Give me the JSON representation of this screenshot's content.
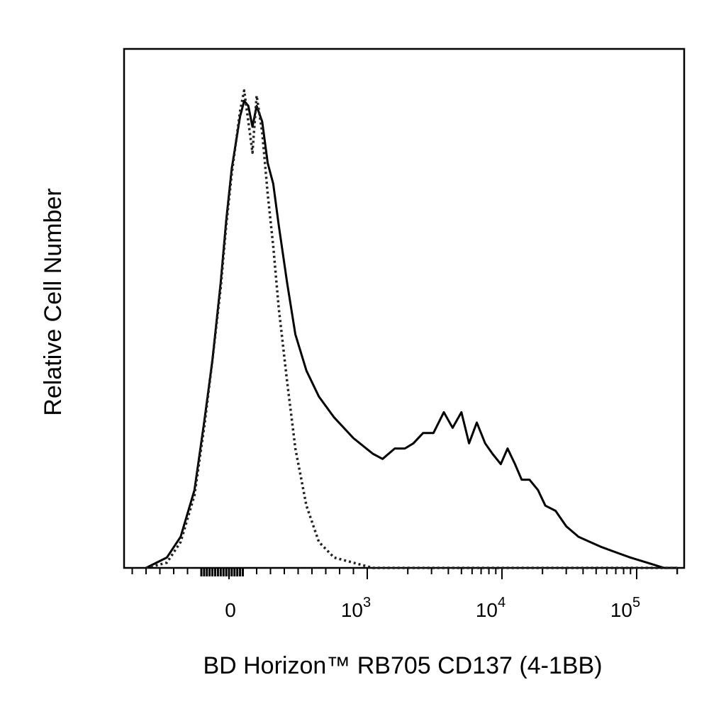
{
  "chart_data": {
    "type": "line",
    "title": "",
    "xlabel": "BD Horizon™ RB705 CD137 (4-1BB)",
    "ylabel": "Relative Cell Number",
    "x_scale": "biexponential",
    "xlim": [
      -600,
      200000
    ],
    "ylim": [
      0,
      100
    ],
    "grid": false,
    "legend": "none",
    "x_ticks": [
      {
        "value": 0,
        "base": "0",
        "exp": ""
      },
      {
        "value": 1000,
        "base": "10",
        "exp": "3"
      },
      {
        "value": 10000,
        "base": "10",
        "exp": "4"
      },
      {
        "value": 100000,
        "base": "10",
        "exp": "5"
      }
    ],
    "series": [
      {
        "style": "solid",
        "color": "#000000",
        "x": [
          -600,
          -450,
          -350,
          -250,
          -180,
          -120,
          -60,
          -20,
          20,
          50,
          80,
          110,
          140,
          170,
          200,
          240,
          280,
          320,
          360,
          420,
          480,
          560,
          650,
          760,
          900,
          1100,
          1300,
          1600,
          1900,
          2200,
          2600,
          3100,
          3700,
          4300,
          5000,
          5700,
          6500,
          7500,
          8500,
          9800,
          11000,
          12500,
          14000,
          16000,
          18500,
          21000,
          25000,
          30000,
          37000,
          45000,
          55000,
          70000,
          90000,
          120000,
          160000,
          200000
        ],
        "y": [
          0,
          2,
          6,
          15,
          28,
          40,
          55,
          67,
          77,
          82,
          87,
          90,
          89,
          85,
          89,
          86,
          78,
          74,
          66,
          55,
          45,
          38,
          33,
          29,
          25,
          22,
          21,
          23,
          23,
          24,
          26,
          26,
          30,
          27,
          30,
          24,
          28,
          24,
          22,
          20,
          23,
          20,
          17,
          17,
          15,
          12,
          11,
          8,
          6,
          5,
          4,
          3,
          2,
          1,
          0,
          0
        ]
      },
      {
        "style": "dotted",
        "color": "#222222",
        "x": [
          -600,
          -450,
          -350,
          -250,
          -180,
          -120,
          -60,
          -20,
          20,
          50,
          80,
          110,
          140,
          170,
          200,
          240,
          280,
          320,
          360,
          420,
          480,
          560,
          650,
          760,
          900,
          1100,
          1300,
          1600,
          2000,
          3000,
          5000,
          10000,
          20000,
          50000,
          100000,
          200000
        ],
        "y": [
          0,
          1,
          5,
          14,
          27,
          40,
          54,
          66,
          76,
          82,
          88,
          92,
          86,
          80,
          91,
          84,
          72,
          62,
          50,
          36,
          23,
          12,
          5,
          2,
          1,
          0,
          0,
          0,
          0,
          0,
          0,
          0,
          0,
          0,
          0,
          0
        ]
      }
    ]
  }
}
